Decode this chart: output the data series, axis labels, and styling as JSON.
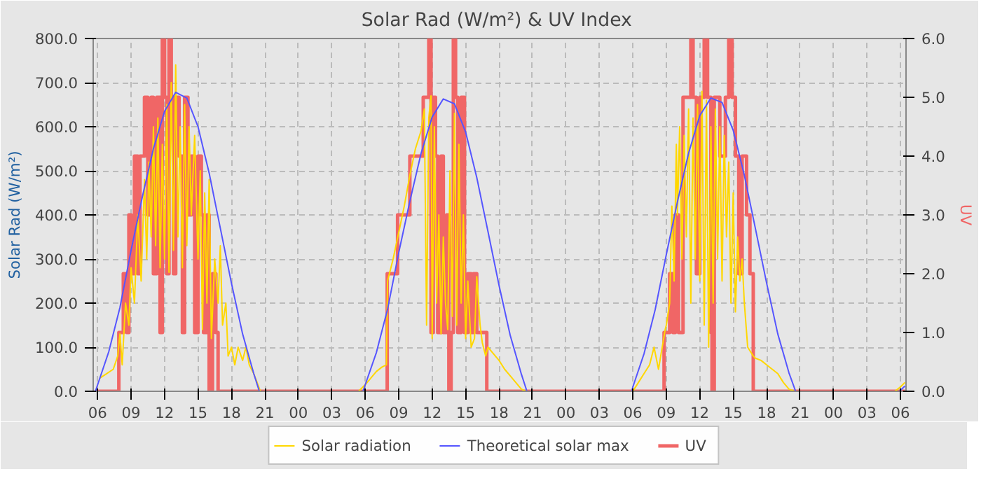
{
  "chart_data": {
    "type": "line",
    "title": "Solar Rad (W/m²) &  UV Index",
    "ylabel": "Solar Rad (W/m²)",
    "y2label": "UV",
    "xlim": [
      5.6,
      78.5
    ],
    "xticks": [
      {
        "value": 6,
        "label": "06"
      },
      {
        "value": 9,
        "label": "09"
      },
      {
        "value": 12,
        "label": "12"
      },
      {
        "value": 15,
        "label": "15"
      },
      {
        "value": 18,
        "label": "18"
      },
      {
        "value": 21,
        "label": "21"
      },
      {
        "value": 24,
        "label": "00"
      },
      {
        "value": 27,
        "label": "03"
      },
      {
        "value": 30,
        "label": "06"
      },
      {
        "value": 33,
        "label": "09"
      },
      {
        "value": 36,
        "label": "12"
      },
      {
        "value": 39,
        "label": "15"
      },
      {
        "value": 42,
        "label": "18"
      },
      {
        "value": 45,
        "label": "21"
      },
      {
        "value": 48,
        "label": "00"
      },
      {
        "value": 51,
        "label": "03"
      },
      {
        "value": 54,
        "label": "06"
      },
      {
        "value": 57,
        "label": "09"
      },
      {
        "value": 60,
        "label": "12"
      },
      {
        "value": 63,
        "label": "15"
      },
      {
        "value": 66,
        "label": "18"
      },
      {
        "value": 69,
        "label": "21"
      },
      {
        "value": 72,
        "label": "00"
      },
      {
        "value": 75,
        "label": "03"
      },
      {
        "value": 78,
        "label": "06"
      }
    ],
    "ylim": [
      0,
      800
    ],
    "yticks": [
      {
        "value": 0,
        "label": "0.0"
      },
      {
        "value": 100,
        "label": "100.0"
      },
      {
        "value": 200,
        "label": "200.0"
      },
      {
        "value": 300,
        "label": "300.0"
      },
      {
        "value": 400,
        "label": "400.0"
      },
      {
        "value": 500,
        "label": "500.0"
      },
      {
        "value": 600,
        "label": "600.0"
      },
      {
        "value": 700,
        "label": "700.0"
      },
      {
        "value": 800,
        "label": "800.0"
      }
    ],
    "y2lim": [
      0,
      6
    ],
    "y2ticks": [
      {
        "value": 0,
        "label": "0.0"
      },
      {
        "value": 1,
        "label": "1.0"
      },
      {
        "value": 2,
        "label": "2.0"
      },
      {
        "value": 3,
        "label": "3.0"
      },
      {
        "value": 4,
        "label": "4.0"
      },
      {
        "value": 5,
        "label": "5.0"
      },
      {
        "value": 6,
        "label": "6.0"
      }
    ],
    "grid": true,
    "legend": "bottom",
    "series": [
      {
        "name": "UV",
        "type": "step",
        "axis": "y2",
        "color": "#f06666",
        "x": [
          5.8,
          7.9,
          8.3,
          8.6,
          8.8,
          9.0,
          9.3,
          9.6,
          9.8,
          10.2,
          10.5,
          10.8,
          11.0,
          11.3,
          11.6,
          11.8,
          12.0,
          12.2,
          12.4,
          12.6,
          12.8,
          13.0,
          13.3,
          13.6,
          13.8,
          14.1,
          14.4,
          14.7,
          15.0,
          15.3,
          15.5,
          15.8,
          16.0,
          16.3,
          16.6,
          16.8,
          31.97,
          32.9,
          34.0,
          35.2,
          35.7,
          35.9,
          36.1,
          36.3,
          36.5,
          36.8,
          37.0,
          37.3,
          37.5,
          37.7,
          37.9,
          38.1,
          38.3,
          38.6,
          38.9,
          39.2,
          39.5,
          39.7,
          40.0,
          40.9,
          56.8,
          57.3,
          57.6,
          57.8,
          58.1,
          58.5,
          59.2,
          59.4,
          59.7,
          60.0,
          60.4,
          60.7,
          61.0,
          61.1,
          61.3,
          61.8,
          62.3,
          62.6,
          62.9,
          63.2,
          63.5,
          63.8,
          64.2,
          64.5,
          64.8,
          78.4
        ],
        "values": [
          0,
          1,
          2,
          1,
          3,
          2,
          4,
          2,
          4,
          5,
          3,
          5,
          2,
          5,
          1,
          6,
          5,
          2,
          6,
          5,
          2,
          5,
          4,
          1,
          5,
          3,
          4,
          1,
          4,
          3,
          1,
          3,
          0,
          2,
          1,
          0,
          2,
          3,
          4,
          5,
          6,
          1,
          5,
          4,
          1,
          4,
          1,
          3,
          0,
          1,
          6,
          5,
          1,
          5,
          1,
          2,
          1,
          2,
          1,
          0,
          1,
          2,
          1,
          3,
          1,
          5,
          6,
          5,
          2,
          5,
          6,
          5,
          1,
          0,
          5,
          4,
          5,
          6,
          5,
          4,
          2,
          4,
          3,
          2,
          0,
          0
        ]
      },
      {
        "name": "Solar radiation",
        "type": "line",
        "color": "#ffd700",
        "x": [
          6.2,
          6.8,
          7.4,
          7.8,
          8.0,
          8.2,
          8.5,
          8.8,
          9.0,
          9.3,
          9.6,
          9.9,
          10.2,
          10.4,
          10.6,
          10.8,
          11.0,
          11.2,
          11.4,
          11.6,
          11.8,
          12.0,
          12.2,
          12.4,
          12.6,
          12.8,
          13.0,
          13.2,
          13.4,
          13.6,
          13.8,
          14.0,
          14.2,
          14.4,
          14.7,
          15.0,
          15.2,
          15.4,
          15.6,
          15.8,
          16.0,
          16.2,
          16.5,
          16.8,
          17.0,
          17.2,
          17.5,
          17.7,
          18.0,
          18.3,
          18.6,
          19.0,
          19.3,
          19.6,
          20.0,
          20.3,
          20.6,
          29.4,
          30.0,
          30.5,
          31.0,
          31.5,
          31.9,
          32.0,
          32.5,
          33.0,
          33.5,
          34.0,
          34.5,
          35.0,
          35.3,
          35.5,
          35.7,
          35.9,
          36.0,
          36.2,
          36.4,
          36.6,
          36.8,
          37.0,
          37.2,
          37.4,
          37.6,
          37.8,
          38.0,
          38.2,
          38.4,
          38.6,
          38.8,
          39.0,
          39.2,
          39.5,
          39.8,
          40.0,
          40.3,
          40.5,
          40.8,
          41.0,
          41.5,
          42.0,
          42.5,
          43.0,
          43.5,
          44.0,
          44.4,
          54.0,
          54.5,
          55.0,
          55.5,
          55.9,
          56.3,
          56.9,
          57.0,
          57.3,
          57.5,
          57.7,
          57.9,
          58.0,
          58.2,
          58.4,
          58.6,
          58.8,
          59.0,
          59.2,
          59.4,
          59.6,
          59.8,
          60.0,
          60.2,
          60.4,
          60.6,
          60.8,
          61.0,
          61.2,
          61.4,
          61.6,
          61.8,
          62.0,
          62.2,
          62.4,
          62.6,
          62.8,
          63.0,
          63.2,
          63.4,
          63.6,
          63.8,
          64.0,
          64.3,
          64.8,
          65.0,
          65.5,
          66.0,
          66.5,
          67.0,
          67.5,
          68.0,
          68.5,
          77.5,
          78.0,
          78.4
        ],
        "values": [
          30,
          40,
          50,
          80,
          130,
          60,
          200,
          150,
          280,
          200,
          400,
          250,
          480,
          300,
          520,
          350,
          600,
          330,
          620,
          280,
          560,
          300,
          650,
          270,
          700,
          320,
          740,
          350,
          600,
          280,
          650,
          330,
          600,
          400,
          580,
          300,
          500,
          140,
          450,
          200,
          480,
          120,
          300,
          200,
          330,
          150,
          200,
          80,
          100,
          60,
          100,
          70,
          100,
          60,
          40,
          20,
          0,
          0,
          15,
          30,
          45,
          55,
          60,
          250,
          300,
          360,
          420,
          490,
          550,
          590,
          640,
          150,
          620,
          670,
          120,
          600,
          200,
          400,
          130,
          350,
          200,
          140,
          500,
          170,
          630,
          150,
          560,
          200,
          400,
          120,
          250,
          100,
          120,
          260,
          150,
          110,
          80,
          100,
          85,
          70,
          50,
          35,
          20,
          5,
          0,
          0,
          20,
          40,
          60,
          100,
          50,
          140,
          150,
          200,
          420,
          250,
          560,
          400,
          600,
          300,
          580,
          350,
          640,
          200,
          620,
          300,
          650,
          250,
          680,
          150,
          660,
          100,
          600,
          200,
          640,
          300,
          600,
          250,
          580,
          350,
          520,
          200,
          450,
          180,
          350,
          250,
          300,
          200,
          100,
          80,
          75,
          70,
          60,
          50,
          40,
          20,
          5,
          0,
          0,
          10,
          20
        ]
      },
      {
        "name": "Theoretical solar max",
        "type": "line",
        "color": "#5555ff",
        "x": [
          5.8,
          6.0,
          7.0,
          8.0,
          9.0,
          10.0,
          11.0,
          12.0,
          13.0,
          14.0,
          15.0,
          16.0,
          17.0,
          18.0,
          19.0,
          20.0,
          20.5,
          29.8,
          30.0,
          31.0,
          32.0,
          33.0,
          34.0,
          35.0,
          36.0,
          37.0,
          38.0,
          39.0,
          40.0,
          41.0,
          42.0,
          43.0,
          44.0,
          44.5,
          53.9,
          54.0,
          55.0,
          56.0,
          57.0,
          58.0,
          59.0,
          60.0,
          61.0,
          62.0,
          63.0,
          64.0,
          65.0,
          66.0,
          67.0,
          68.0,
          68.6,
          77.9,
          78.4
        ],
        "values": [
          0,
          15,
          90,
          190,
          320,
          440,
          550,
          635,
          678,
          665,
          600,
          495,
          370,
          245,
          130,
          40,
          0,
          0,
          15,
          88,
          186,
          314,
          431,
          539,
          622,
          663,
          652,
          588,
          485,
          363,
          240,
          127,
          39,
          0,
          0,
          10,
          85,
          185,
          310,
          430,
          540,
          625,
          665,
          655,
          592,
          490,
          368,
          245,
          130,
          42,
          0,
          0,
          12
        ]
      }
    ]
  }
}
